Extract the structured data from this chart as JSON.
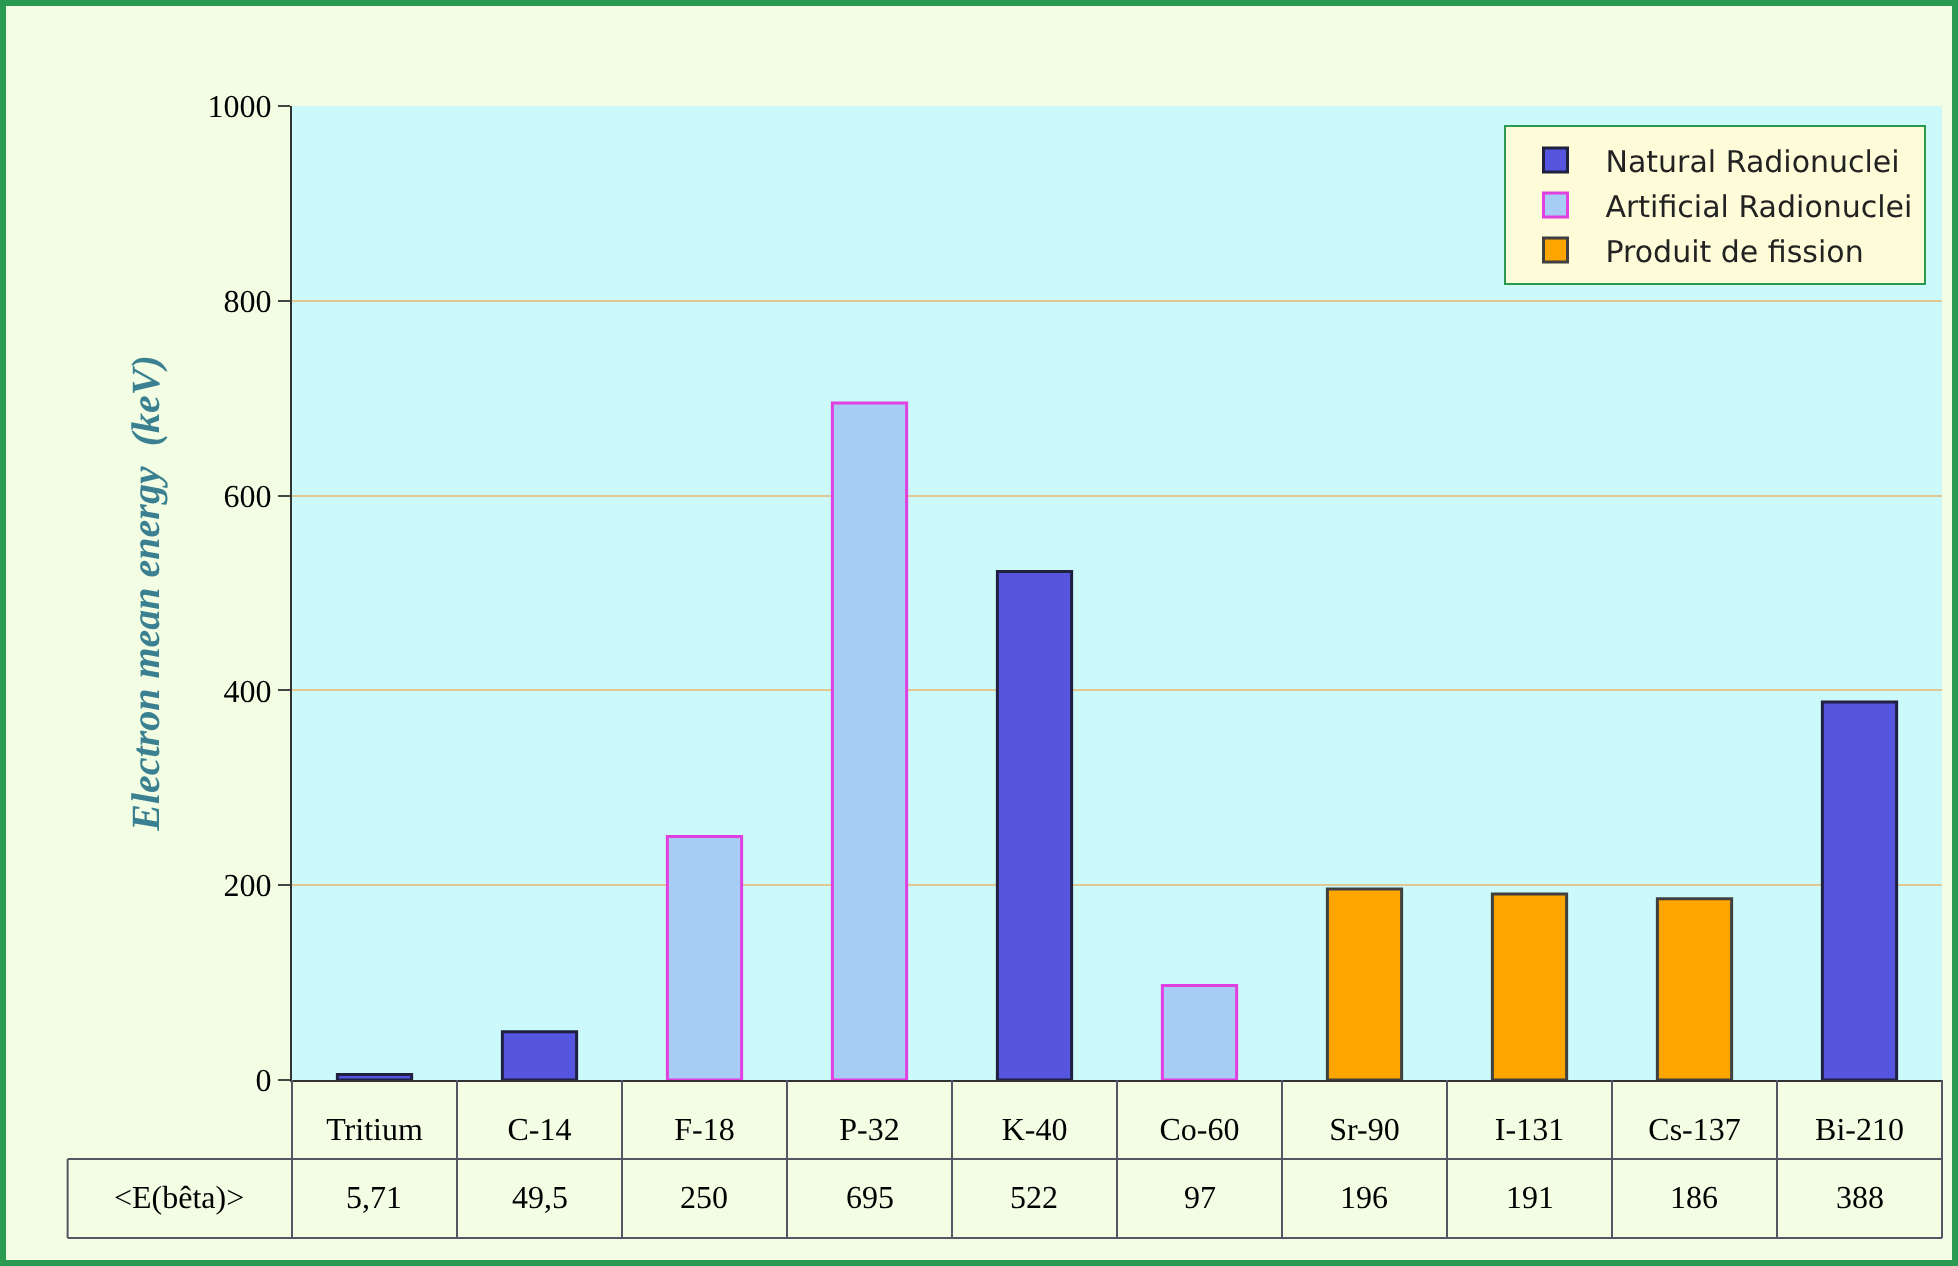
{
  "chart_data": {
    "type": "bar",
    "ylabel": "Electron mean energy  (keV)",
    "categories": [
      "Tritium",
      "C-14",
      "F-18",
      "P-32",
      "K-40",
      "Co-60",
      "Sr-90",
      "I-131",
      "Cs-137",
      "Bi-210"
    ],
    "series": [
      {
        "name": "Natural Radionuclei",
        "color": "#5555e0",
        "values": [
          5.71,
          49.5,
          null,
          null,
          522,
          null,
          null,
          null,
          null,
          388
        ],
        "value_labels": [
          "5,71",
          "49,5",
          null,
          null,
          "522",
          null,
          null,
          null,
          null,
          "388"
        ]
      },
      {
        "name": "Artificial Radionuclei",
        "color": "#a8cdf5",
        "values": [
          null,
          null,
          250,
          695,
          null,
          97,
          null,
          null,
          null,
          null
        ],
        "value_labels": [
          null,
          null,
          "250",
          "695",
          null,
          "97",
          null,
          null,
          null,
          null
        ]
      },
      {
        "name": "Produit de fission",
        "color": "#ffa500",
        "values": [
          null,
          null,
          null,
          null,
          null,
          null,
          196,
          191,
          186,
          null
        ],
        "value_labels": [
          null,
          null,
          null,
          null,
          null,
          null,
          "196",
          "191",
          "186",
          null
        ]
      }
    ],
    "annotations": [
      "<E(bêta)>"
    ],
    "ylim": [
      0,
      1000
    ],
    "yticks": [
      0,
      200,
      400,
      600,
      800,
      1000
    ],
    "grid": "y",
    "legend": "top right"
  }
}
